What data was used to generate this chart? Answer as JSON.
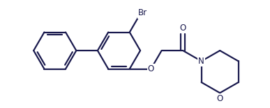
{
  "bg_color": "#ffffff",
  "line_color": "#1a1a4e",
  "line_width": 1.6,
  "figsize": [
    3.87,
    1.56
  ],
  "dpi": 100,
  "font_size": 8.5,
  "ring_r": 0.33,
  "morph_r": 0.28,
  "label_Br": "Br",
  "label_O_ether": "O",
  "label_O_carbonyl": "O",
  "label_N": "N",
  "label_O_morph": "O"
}
